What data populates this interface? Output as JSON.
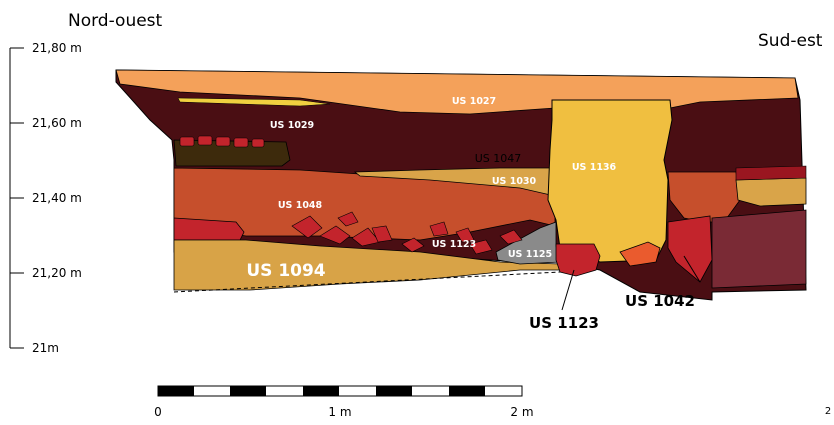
{
  "orientation": {
    "left": "Nord-ouest",
    "right": "Sud-est"
  },
  "elevation_scale": {
    "ticks": [
      "21,80 m",
      "21,60 m",
      "21,40 m",
      "21,20 m",
      "21m"
    ]
  },
  "layers": {
    "us1027": "US 1027",
    "us1029": "US 1029",
    "us1047": "US 1047",
    "us1136": "US 1136",
    "us1030": "US 1030",
    "us1048": "US 1048",
    "us1123_inner": "US 1123",
    "us1125": "US 1125",
    "us1094": "US 1094"
  },
  "callouts": {
    "us1123": "US 1123",
    "us1042": "US 1042"
  },
  "scale_bar": {
    "labels": [
      "0",
      "1 m",
      "2 m"
    ]
  },
  "page_mark": "2",
  "colors": {
    "us1027": "#f4a15a",
    "us1029": "#4a0e13",
    "us1136": "#f0bf40",
    "us1030": "#d9a449",
    "us1048": "#c64f2c",
    "us1094": "#d8a347",
    "us1123": "#c3242c",
    "us1125": "#8a8a8a",
    "us1042": "#c3242c",
    "dark_brown": "#3d2a0c"
  }
}
